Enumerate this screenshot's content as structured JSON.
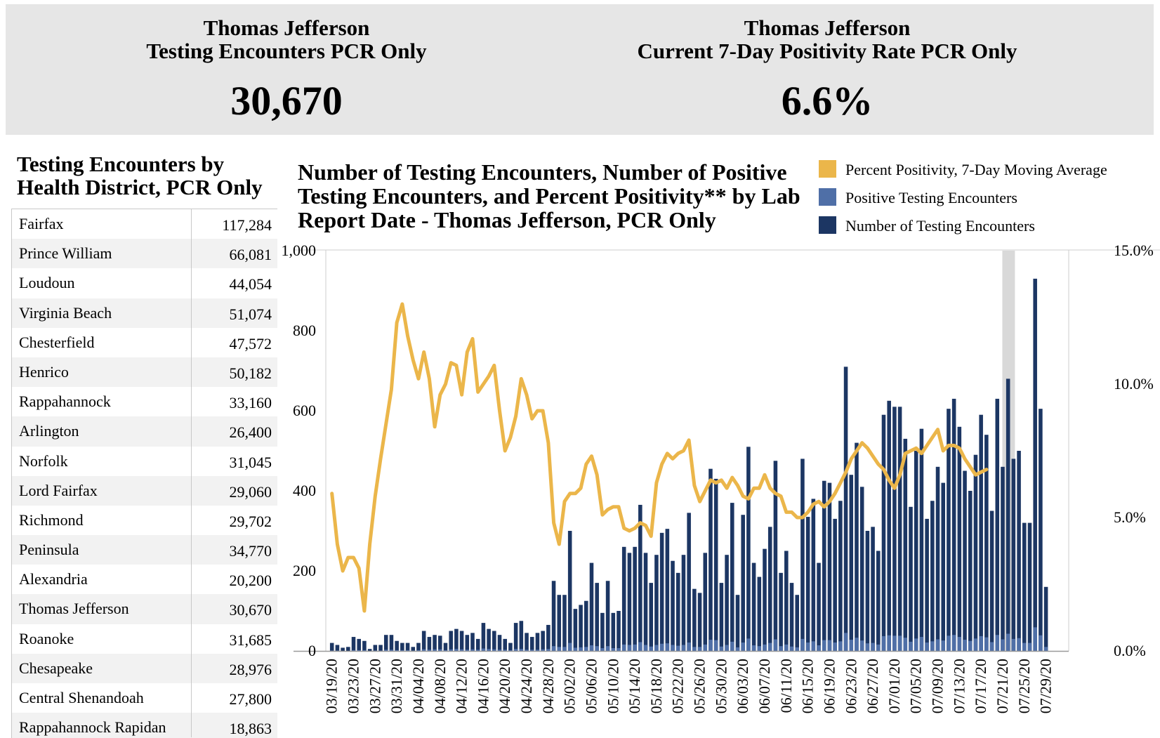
{
  "kpis": {
    "left": {
      "title_line1": "Thomas Jefferson",
      "title_line2": "Testing Encounters PCR Only",
      "value": "30,670"
    },
    "right": {
      "title_line1": "Thomas Jefferson",
      "title_line2": "Current 7-Day Positivity Rate PCR Only",
      "value": "6.6%"
    }
  },
  "side_table": {
    "title_line1": "Testing Encounters by",
    "title_line2": "Health District, PCR Only",
    "rows": [
      {
        "name": "Fairfax",
        "value": "117,284"
      },
      {
        "name": "Prince William",
        "value": "66,081"
      },
      {
        "name": "Loudoun",
        "value": "44,054"
      },
      {
        "name": "Virginia Beach",
        "value": "51,074"
      },
      {
        "name": "Chesterfield",
        "value": "47,572"
      },
      {
        "name": "Henrico",
        "value": "50,182"
      },
      {
        "name": "Rappahannock",
        "value": "33,160"
      },
      {
        "name": "Arlington",
        "value": "26,400"
      },
      {
        "name": "Norfolk",
        "value": "31,045"
      },
      {
        "name": "Lord Fairfax",
        "value": "29,060"
      },
      {
        "name": "Richmond",
        "value": "29,702"
      },
      {
        "name": "Peninsula",
        "value": "34,770"
      },
      {
        "name": "Alexandria",
        "value": "20,200"
      },
      {
        "name": "Thomas Jefferson",
        "value": "30,670"
      },
      {
        "name": "Roanoke",
        "value": "31,685"
      },
      {
        "name": "Chesapeake",
        "value": "28,976"
      },
      {
        "name": "Central Shenandoah",
        "value": "27,800"
      },
      {
        "name": "Rappahannock Rapidan",
        "value": "18,863"
      }
    ]
  },
  "chart_title": {
    "line1": "Number of Testing Encounters, Number of Positive",
    "line2": "Testing Encounters, and Percent Positivity** by Lab",
    "line3": "Report Date - Thomas Jefferson, PCR Only"
  },
  "legend": [
    {
      "label": "Percent Positivity, 7-Day Moving Average",
      "color": "#ebb64a"
    },
    {
      "label": "Positive Testing Encounters",
      "color": "#4f6fa7"
    },
    {
      "label": "Number of Testing Encounters",
      "color": "#1c3663"
    }
  ],
  "colors": {
    "bar_total": "#1c3663",
    "bar_positive": "#4f6fa7",
    "line": "#ebb64a",
    "incomplete_band": "#d9d9d9"
  },
  "chart_data": {
    "type": "bar",
    "start_date": "2020-03-18",
    "end_date": "2020-07-31",
    "x_tick_labels": [
      "03/19/20",
      "03/23/20",
      "03/27/20",
      "03/31/20",
      "04/04/20",
      "04/08/20",
      "04/12/20",
      "04/16/20",
      "04/20/20",
      "04/24/20",
      "04/28/20",
      "05/02/20",
      "05/06/20",
      "05/10/20",
      "05/14/20",
      "05/18/20",
      "05/22/20",
      "05/26/20",
      "05/30/20",
      "06/03/20",
      "06/07/20",
      "06/11/20",
      "06/15/20",
      "06/19/20",
      "06/23/20",
      "06/27/20",
      "07/01/20",
      "07/05/20",
      "07/09/20",
      "07/13/20",
      "07/17/20",
      "07/21/20",
      "07/25/20",
      "07/29/20"
    ],
    "y_left": {
      "ylim": [
        0,
        1000
      ],
      "ticks": [
        "0",
        "200",
        "400",
        "600",
        "800",
        "1,000"
      ]
    },
    "y_right": {
      "ylim": [
        0,
        0.15
      ],
      "ticks": [
        "0.0%",
        "5.0%",
        "10.0%",
        "15.0%"
      ]
    },
    "incomplete_period": {
      "from": "2020-07-21",
      "to": "2020-07-23"
    },
    "series": [
      {
        "name": "Number of Testing Encounters",
        "axis": "left",
        "type": "bar",
        "start": "2020-03-19",
        "values": [
          20,
          15,
          8,
          10,
          35,
          30,
          25,
          5,
          15,
          15,
          40,
          40,
          25,
          20,
          20,
          10,
          20,
          50,
          35,
          40,
          38,
          20,
          50,
          55,
          50,
          40,
          45,
          30,
          70,
          55,
          50,
          40,
          30,
          20,
          70,
          75,
          45,
          35,
          45,
          50,
          65,
          175,
          140,
          140,
          300,
          105,
          115,
          125,
          220,
          170,
          95,
          175,
          95,
          100,
          260,
          245,
          260,
          365,
          245,
          170,
          240,
          295,
          305,
          225,
          195,
          240,
          345,
          155,
          145,
          245,
          455,
          430,
          170,
          240,
          370,
          140,
          340,
          510,
          220,
          185,
          255,
          310,
          475,
          195,
          250,
          170,
          140,
          480,
          335,
          380,
          220,
          425,
          420,
          330,
          375,
          710,
          440,
          520,
          410,
          300,
          310,
          250,
          590,
          625,
          610,
          610,
          530,
          360,
          500,
          555,
          330,
          375,
          460,
          420,
          605,
          630,
          560,
          450,
          400,
          490,
          590,
          540,
          350,
          630,
          460,
          680,
          480,
          500,
          320,
          320,
          930,
          605,
          160
        ]
      },
      {
        "name": "Positive Testing Encounters",
        "axis": "left",
        "type": "bar",
        "start": "2020-03-19",
        "values": [
          1,
          1,
          0,
          0,
          2,
          2,
          2,
          0,
          1,
          1,
          3,
          3,
          2,
          2,
          2,
          1,
          2,
          4,
          3,
          4,
          4,
          2,
          4,
          5,
          4,
          3,
          4,
          3,
          6,
          5,
          4,
          3,
          3,
          2,
          5,
          5,
          3,
          3,
          3,
          4,
          5,
          12,
          10,
          10,
          20,
          8,
          9,
          10,
          14,
          12,
          7,
          12,
          7,
          7,
          16,
          15,
          16,
          22,
          15,
          11,
          15,
          18,
          19,
          15,
          13,
          15,
          21,
          10,
          10,
          16,
          28,
          27,
          11,
          15,
          23,
          9,
          21,
          31,
          14,
          12,
          16,
          20,
          29,
          12,
          16,
          11,
          9,
          30,
          21,
          24,
          14,
          27,
          27,
          21,
          24,
          45,
          28,
          33,
          26,
          19,
          20,
          16,
          37,
          39,
          38,
          38,
          33,
          23,
          31,
          35,
          21,
          24,
          29,
          26,
          38,
          40,
          35,
          28,
          25,
          31,
          37,
          34,
          22,
          40,
          29,
          43,
          30,
          32,
          20,
          20,
          59,
          39,
          10
        ]
      },
      {
        "name": "Percent Positivity, 7-Day Moving Average",
        "axis": "right",
        "type": "line",
        "start": "2020-03-19",
        "values": [
          0.059,
          0.04,
          0.03,
          0.035,
          0.035,
          0.031,
          0.015,
          0.04,
          0.058,
          0.072,
          0.085,
          0.098,
          0.123,
          0.13,
          0.118,
          0.109,
          0.102,
          0.112,
          0.102,
          0.084,
          0.096,
          0.1,
          0.108,
          0.107,
          0.096,
          0.112,
          0.117,
          0.097,
          0.1,
          0.103,
          0.107,
          0.09,
          0.075,
          0.08,
          0.088,
          0.102,
          0.096,
          0.087,
          0.09,
          0.09,
          0.078,
          0.048,
          0.04,
          0.056,
          0.059,
          0.059,
          0.061,
          0.07,
          0.073,
          0.066,
          0.051,
          0.053,
          0.054,
          0.054,
          0.046,
          0.045,
          0.046,
          0.048,
          0.047,
          0.043,
          0.063,
          0.07,
          0.074,
          0.072,
          0.074,
          0.075,
          0.079,
          0.062,
          0.056,
          0.06,
          0.064,
          0.063,
          0.064,
          0.061,
          0.065,
          0.062,
          0.058,
          0.057,
          0.061,
          0.061,
          0.066,
          0.061,
          0.059,
          0.058,
          0.052,
          0.052,
          0.05,
          0.05,
          0.052,
          0.055,
          0.056,
          0.054,
          0.056,
          0.059,
          0.063,
          0.067,
          0.072,
          0.075,
          0.078,
          0.076,
          0.073,
          0.07,
          0.068,
          0.064,
          0.061,
          0.066,
          0.074,
          0.075,
          0.076,
          0.074,
          0.077,
          0.08,
          0.083,
          0.075,
          0.077,
          0.077,
          0.076,
          0.072,
          0.069,
          0.066,
          0.067,
          0.068
        ]
      }
    ]
  }
}
